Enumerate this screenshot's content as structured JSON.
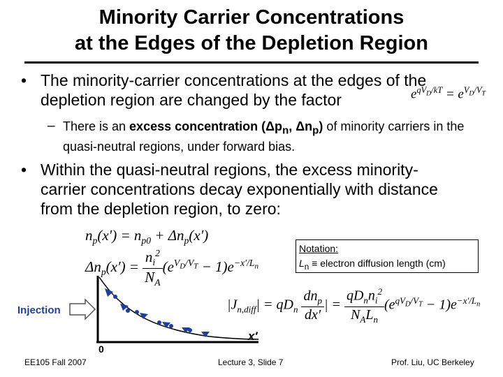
{
  "title": [
    "Minority Carrier Concentrations",
    "at the Edges of the Depletion Region"
  ],
  "bullets": [
    {
      "text": "The minority-carrier concentrations at the edges of the depletion region are changed by the factor",
      "formula": [
        "e",
        "qV",
        "D",
        "/kT",
        " = e",
        "V",
        "D",
        "/V",
        "T"
      ],
      "sub_bullet": [
        "There is an ",
        "excess concentration (Δp",
        "n",
        ", Δn",
        "p",
        ")",
        " of minority carriers in the quasi-neutral regions, under forward bias."
      ]
    },
    {
      "text": "Within the quasi-neutral regions, the excess minority-carrier concentrations decay exponentially with distance from the depletion region, to zero:"
    }
  ],
  "equations": {
    "carrier": [
      "n",
      "p",
      "(x′) = n",
      "p0",
      " + Δn",
      "p",
      "(x′)"
    ],
    "excess": {
      "lhs": [
        "Δn",
        "p",
        "(x′) ="
      ],
      "numerator": [
        "n",
        "i",
        "2"
      ],
      "denominator": [
        "N",
        "A"
      ],
      "factor": [
        "(e",
        "V",
        "D",
        "/V",
        "T",
        " − 1)",
        "e",
        "−x′/L",
        "n"
      ]
    },
    "current": {
      "lhs": [
        "J",
        "n,diff"
      ],
      "middle": [
        "= qD",
        "n"
      ],
      "derivative": [
        [
          "dn",
          "p"
        ],
        "dx′"
      ],
      "numerator": [
        "qD",
        "n",
        "n",
        "i",
        "2"
      ],
      "denominator": [
        "N",
        "A",
        "L",
        "n"
      ],
      "factor": [
        "(e",
        "qV",
        "D",
        "/V",
        "T",
        " − 1)",
        "e",
        "−x′/L",
        "n"
      ]
    }
  },
  "notation": {
    "heading": "Notation:",
    "symbol": [
      "L",
      "n"
    ],
    "definition": " ≡ electron diffusion length (cm)"
  },
  "figure": {
    "injection": "Injection",
    "origin": "0",
    "axis": "x′"
  },
  "footer": {
    "left": "EE105 Fall 2007",
    "center": "Lecture 3, Slide 7",
    "right": "Prof. Liu, UC Berkeley"
  }
}
